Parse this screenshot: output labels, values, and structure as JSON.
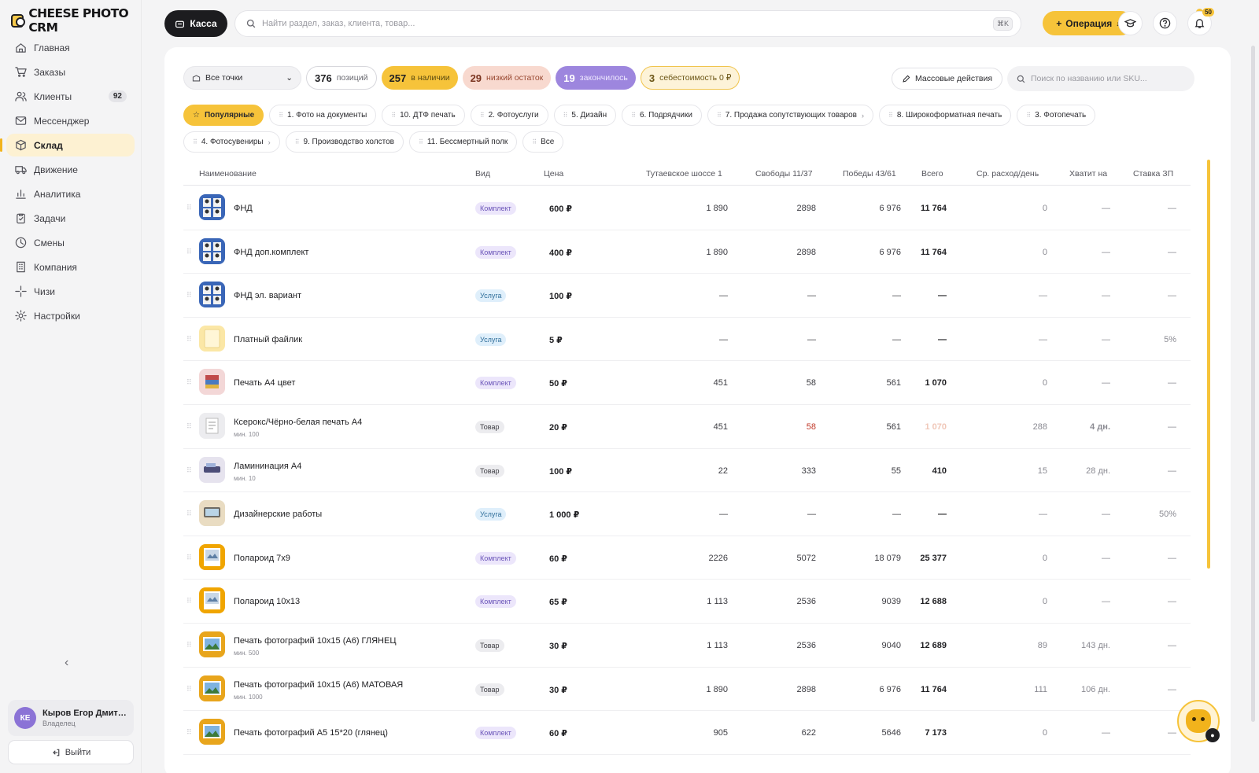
{
  "app": {
    "logo": "CHEESE PHOTO CRM"
  },
  "sidebar": {
    "items": [
      {
        "label": "Главная",
        "icon": "home-icon"
      },
      {
        "label": "Заказы",
        "icon": "cart-icon"
      },
      {
        "label": "Клиенты",
        "icon": "users-icon",
        "badge": "92"
      },
      {
        "label": "Мессенджер",
        "icon": "mail-icon"
      },
      {
        "label": "Склад",
        "icon": "box-icon",
        "active": true
      },
      {
        "label": "Движение",
        "icon": "truck-icon"
      },
      {
        "label": "Аналитика",
        "icon": "chart-icon"
      },
      {
        "label": "Задачи",
        "icon": "clipboard-icon"
      },
      {
        "label": "Смены",
        "icon": "clock-icon"
      },
      {
        "label": "Компания",
        "icon": "building-icon"
      },
      {
        "label": "Чизи",
        "icon": "sparkle-icon"
      },
      {
        "label": "Настройки",
        "icon": "gear-icon"
      }
    ],
    "collapse_glyph": "‹",
    "user": {
      "initials": "КЕ",
      "name": "Кыров Егор Дмитр...",
      "role": "Владелец"
    },
    "logout_label": "Выйти"
  },
  "topbar": {
    "kassa_label": "Касса",
    "search_placeholder": "Найти раздел, заказ, клиента, товар...",
    "search_shortcut": "⌘K",
    "operation_label": "Операция",
    "notifications_count": "50"
  },
  "filters": {
    "point_select": "Все точки",
    "total": {
      "value": "376",
      "label": "позиций"
    },
    "in_stock": {
      "value": "257",
      "label": "в наличии"
    },
    "low": {
      "value": "29",
      "label": "низкий остаток"
    },
    "out": {
      "value": "19",
      "label": "закончилось"
    },
    "cost": {
      "value": "3",
      "label": "себестоимость 0 ₽"
    },
    "mass_actions": "Массовые действия",
    "sku_placeholder": "Поиск по названию или SKU..."
  },
  "categories": [
    [
      {
        "label": "Популярные",
        "active": true,
        "star": true
      },
      {
        "label": "1. Фото на документы"
      },
      {
        "label": "10. ДТФ печать"
      },
      {
        "label": "2. Фотоуслуги"
      },
      {
        "label": "5. Дизайн"
      },
      {
        "label": "6. Подрядчики"
      },
      {
        "label": "7. Продажа сопутствующих товаров",
        "arrow": true
      },
      {
        "label": "8. Широкоформатная печать"
      },
      {
        "label": "3. Фотопечать"
      }
    ],
    [
      {
        "label": "4. Фотосувениры",
        "arrow": true
      },
      {
        "label": "9. Производство холстов"
      },
      {
        "label": "11. Бессмертный полк"
      },
      {
        "label": "Все"
      }
    ]
  ],
  "table": {
    "headers": {
      "name": "Наименование",
      "kind": "Вид",
      "price": "Цена",
      "p1": "Тутаевское шоссе 1",
      "p2": "Свободы 11/37",
      "p3": "Победы 43/61",
      "total": "Всего",
      "avg": "Ср. расход/день",
      "enough": "Хватит на",
      "rate": "Ставка ЗП"
    },
    "rows": [
      {
        "name": "ФНД",
        "kind": "Комплект",
        "kc": "k",
        "price": "600 ₽",
        "p1": "1 890",
        "p2": "2898",
        "p3": "6 976",
        "total": "11 764",
        "avg": "0",
        "enough": "—",
        "rate": "—",
        "thumb": "doc"
      },
      {
        "name": "ФНД доп.комплект",
        "kind": "Комплект",
        "kc": "k",
        "price": "400 ₽",
        "p1": "1 890",
        "p2": "2898",
        "p3": "6 976",
        "total": "11 764",
        "avg": "0",
        "enough": "—",
        "rate": "—",
        "thumb": "doc"
      },
      {
        "name": "ФНД эл. вариант",
        "kind": "Услуга",
        "kc": "u",
        "price": "100 ₽",
        "p1": "—",
        "p2": "—",
        "p3": "—",
        "total": "—",
        "avg": "—",
        "enough": "—",
        "rate": "—",
        "thumb": "doc"
      },
      {
        "name": "Платный файлик",
        "kind": "Услуга",
        "kc": "u",
        "price": "5 ₽",
        "p1": "—",
        "p2": "—",
        "p3": "—",
        "total": "—",
        "avg": "—",
        "enough": "—",
        "rate": "5%",
        "thumb": "file"
      },
      {
        "name": "Печать А4 цвет",
        "kind": "Комплект",
        "kc": "k",
        "price": "50 ₽",
        "p1": "451",
        "p2": "58",
        "p3": "561",
        "total": "1 070",
        "avg": "0",
        "enough": "—",
        "rate": "—",
        "thumb": "print"
      },
      {
        "name": "Ксерокс/Чёрно-белая печать А4",
        "min": "мин. 100",
        "kind": "Товар",
        "kc": "t",
        "price": "20 ₽",
        "p1": "451",
        "p2": "58",
        "p2c": "red",
        "p3": "561",
        "total": "1 070",
        "totalc": "faint",
        "avg": "288",
        "enough": "4 дн.",
        "enoughc": "red",
        "rate": "—",
        "thumb": "copy"
      },
      {
        "name": "Ламининация А4",
        "min": "мин. 10",
        "kind": "Товар",
        "kc": "t",
        "price": "100 ₽",
        "p1": "22",
        "p2": "333",
        "p3": "55",
        "total": "410",
        "avg": "15",
        "enough": "28 дн.",
        "rate": "—",
        "thumb": "lam"
      },
      {
        "name": "Дизайнерские работы",
        "kind": "Услуга",
        "kc": "u",
        "price": "1 000 ₽",
        "p1": "—",
        "p2": "—",
        "p3": "—",
        "total": "—",
        "avg": "—",
        "enough": "—",
        "rate": "50%",
        "thumb": "design"
      },
      {
        "name": "Полароид 7х9",
        "kind": "Комплект",
        "kc": "k",
        "price": "60 ₽",
        "p1": "2226",
        "p2": "5072",
        "p3": "18 079",
        "total": "25 377",
        "avg": "0",
        "enough": "—",
        "rate": "—",
        "thumb": "pola"
      },
      {
        "name": "Полароид 10х13",
        "kind": "Комплект",
        "kc": "k",
        "price": "65 ₽",
        "p1": "1 113",
        "p2": "2536",
        "p3": "9039",
        "total": "12 688",
        "avg": "0",
        "enough": "—",
        "rate": "—",
        "thumb": "pola"
      },
      {
        "name": "Печать фотографий 10х15 (А6) ГЛЯНЕЦ",
        "min": "мин. 500",
        "kind": "Товар",
        "kc": "t",
        "price": "30 ₽",
        "p1": "1 113",
        "p2": "2536",
        "p3": "9040",
        "total": "12 689",
        "avg": "89",
        "enough": "143 дн.",
        "rate": "—",
        "thumb": "photo"
      },
      {
        "name": "Печать фотографий 10х15 (А6) МАТОВАЯ",
        "min": "мин. 1000",
        "kind": "Товар",
        "kc": "t",
        "price": "30 ₽",
        "p1": "1 890",
        "p2": "2898",
        "p3": "6 976",
        "total": "11 764",
        "avg": "111",
        "enough": "106 дн.",
        "rate": "—",
        "thumb": "photo"
      },
      {
        "name": "Печать фотографий А5 15*20 (глянец)",
        "kind": "Комплект",
        "kc": "k",
        "price": "60 ₽",
        "p1": "905",
        "p2": "622",
        "p3": "5646",
        "total": "7 173",
        "avg": "0",
        "enough": "—",
        "rate": "—",
        "thumb": "photo"
      }
    ]
  },
  "colors": {
    "accent": "#f6c33a",
    "active_nav_bg": "#fdf1d2",
    "low_red": "#c23a2a",
    "out_purple": "#9d86de"
  }
}
